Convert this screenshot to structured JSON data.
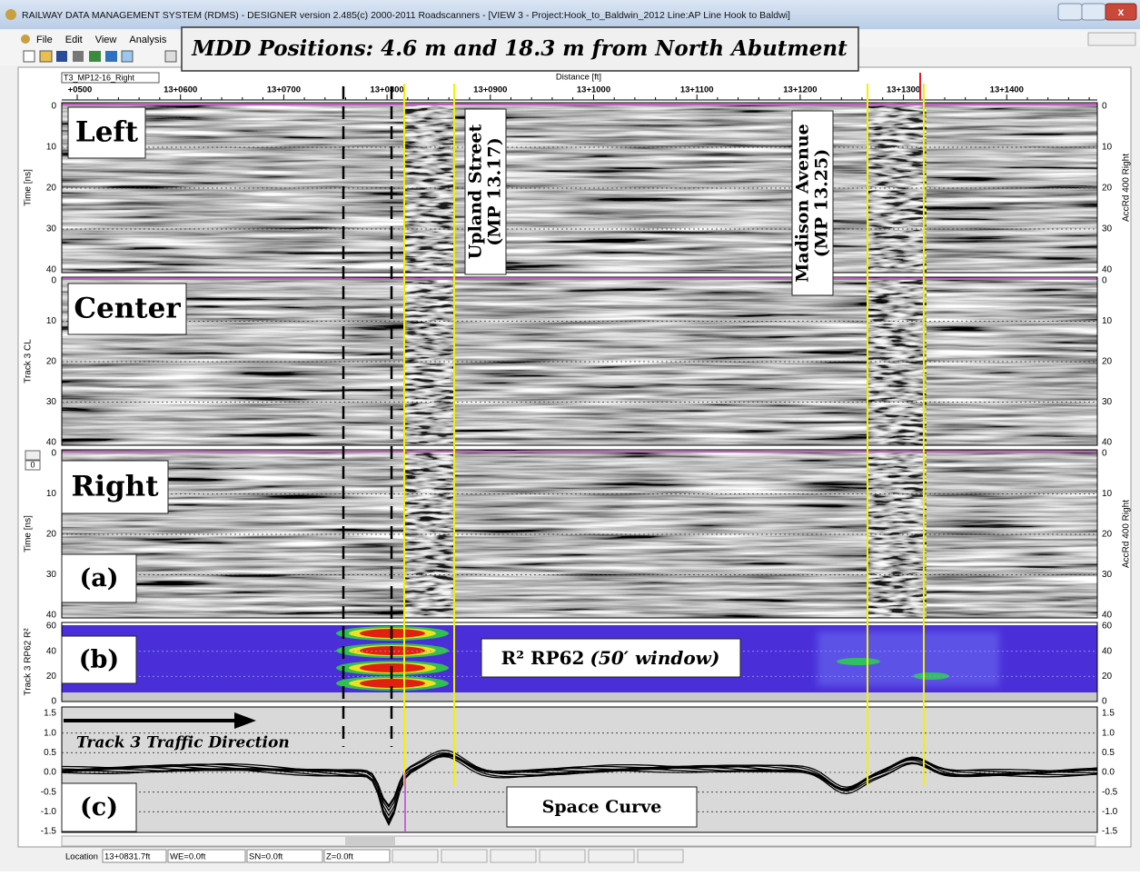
{
  "window": {
    "title": "RAILWAY DATA MANAGEMENT SYSTEM (RDMS) - DESIGNER version 2.485(c) 2000-2011 Roadscanners - [VIEW 3 - Project:Hook_to_Baldwin_2012  Line:AP Line Hook to Baldwi]"
  },
  "menu": [
    "File",
    "Edit",
    "View",
    "Analysis"
  ],
  "annotation": "MDD Positions: 4.6 m and 18.3 m from North Abutment",
  "view": {
    "file_label": "T3_MP12-16_Right",
    "distance_label": "Distance [ft]",
    "distance_ticks": [
      "+0500",
      "13+0600",
      "13+0700",
      "13+0800",
      "13+0900",
      "13+1000",
      "13+1100",
      "13+1200",
      "13+1300",
      "13+1400"
    ]
  },
  "panels": [
    {
      "label": "Left",
      "left_axis": "Time [ns]",
      "right_axis": "AccRd 400 Right",
      "ticks": [
        "0",
        "10",
        "20",
        "30",
        "40"
      ]
    },
    {
      "label": "Center",
      "left_axis": "Track 3 CL",
      "ticks": [
        "0",
        "10",
        "20",
        "30",
        "40"
      ]
    },
    {
      "label": "Right",
      "sublabel": "(a)",
      "left_axis": "Time [ns]",
      "right_axis": "AccRd 400 Right",
      "ticks": [
        "0",
        "10",
        "20",
        "30",
        "40"
      ]
    },
    {
      "label": "(b)",
      "left_axis": "Track 3 RP62 R²",
      "ticks": [
        "60",
        "40",
        "20",
        "0"
      ],
      "note": "R² RP62",
      "note_italic": "(50′ window)"
    },
    {
      "label": "(c)",
      "ticks": [
        "1.5",
        "1.0",
        "0.5",
        "0.0",
        "-0.5",
        "-1.0",
        "-1.5"
      ],
      "note": "Space Curve",
      "arrow_text": "Track 3 Traffic Direction"
    }
  ],
  "street_labels": [
    {
      "name": "Upland Street",
      "mp": "(MP 13.17)"
    },
    {
      "name": "Madison Avenue",
      "mp": "(MP 13.25)"
    }
  ],
  "scroll_value": "0",
  "status": [
    "Location",
    "13+0831.7ft",
    "WE=0.0ft",
    "SN=0.0ft",
    "Z=0.0ft"
  ]
}
